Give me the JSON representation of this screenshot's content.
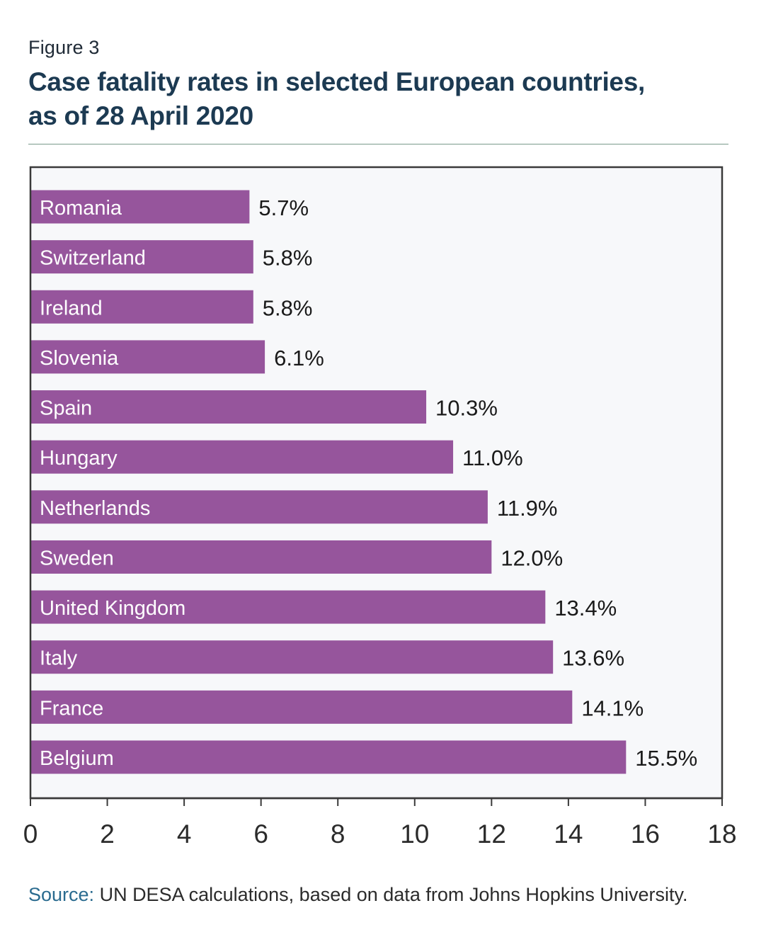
{
  "figure_label": "Figure 3",
  "title_line1": "Case fatality rates in selected European countries,",
  "title_line2": "as of 28 April 2020",
  "source_key": "Source:",
  "source_text": " UN DESA calculations, based on data from Johns Hopkins University.",
  "colors": {
    "bar": "#96559c",
    "plot_background": "#f7f8fa",
    "frame": "#3a3a3a",
    "rule": "#7a9a8a",
    "source_key": "#2a6b8f"
  },
  "chart_data": {
    "type": "bar",
    "orientation": "horizontal",
    "categories": [
      "Romania",
      "Switzerland",
      "Ireland",
      "Slovenia",
      "Spain",
      "Hungary",
      "Netherlands",
      "Sweden",
      "United Kingdom",
      "Italy",
      "France",
      "Belgium"
    ],
    "values": [
      5.7,
      5.8,
      5.8,
      6.1,
      10.3,
      11.0,
      11.9,
      12.0,
      13.4,
      13.6,
      14.1,
      15.5
    ],
    "data_labels": [
      "5.7%",
      "5.8%",
      "5.8%",
      "6.1%",
      "10.3%",
      "11.0%",
      "11.9%",
      "12.0%",
      "13.4%",
      "13.6%",
      "14.1%",
      "15.5%"
    ],
    "xlim": [
      0,
      18
    ],
    "xticks": [
      0,
      2,
      4,
      6,
      8,
      10,
      12,
      14,
      16,
      18
    ],
    "xlabel": "",
    "ylabel": "",
    "category_labels_inside_bars": true,
    "grid": false,
    "legend": false
  }
}
